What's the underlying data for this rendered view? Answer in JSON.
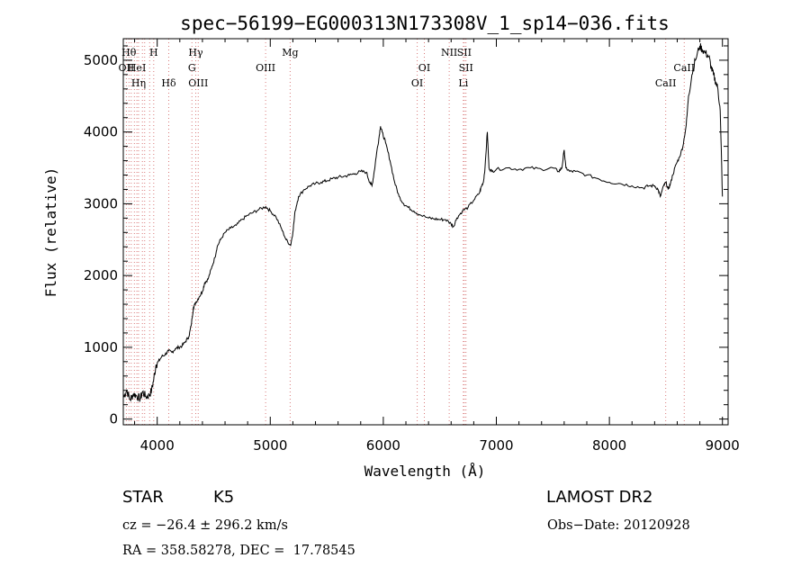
{
  "chart_data": {
    "type": "line",
    "title": "spec−56199−EG000313N173308V_1_sp14−036.fits",
    "xlabel": "Wavelength (Å)",
    "ylabel": "Flux (relative)",
    "xlim": [
      3700,
      9050
    ],
    "ylim": [
      -80,
      5300
    ],
    "xticks": [
      4000,
      5000,
      6000,
      7000,
      8000,
      9000
    ],
    "yticks": [
      0,
      1000,
      2000,
      3000,
      4000,
      5000
    ],
    "grid": false,
    "line_color": "#000000",
    "marker_color": "#d97a7a",
    "series": [
      {
        "values": [
          [
            3700,
            300
          ],
          [
            3730,
            400
          ],
          [
            3760,
            270
          ],
          [
            3790,
            350
          ],
          [
            3820,
            320
          ],
          [
            3850,
            280
          ],
          [
            3870,
            380
          ],
          [
            3900,
            310
          ],
          [
            3930,
            330
          ],
          [
            3950,
            400
          ],
          [
            3970,
            560
          ],
          [
            3990,
            760
          ],
          [
            4010,
            800
          ],
          [
            4040,
            870
          ],
          [
            4070,
            900
          ],
          [
            4100,
            950
          ],
          [
            4130,
            930
          ],
          [
            4160,
            980
          ],
          [
            4190,
            1000
          ],
          [
            4220,
            1020
          ],
          [
            4250,
            1080
          ],
          [
            4280,
            1150
          ],
          [
            4300,
            1300
          ],
          [
            4320,
            1550
          ],
          [
            4340,
            1620
          ],
          [
            4370,
            1700
          ],
          [
            4400,
            1780
          ],
          [
            4420,
            1900
          ],
          [
            4450,
            1950
          ],
          [
            4480,
            2100
          ],
          [
            4510,
            2250
          ],
          [
            4530,
            2400
          ],
          [
            4560,
            2500
          ],
          [
            4600,
            2600
          ],
          [
            4650,
            2660
          ],
          [
            4700,
            2700
          ],
          [
            4750,
            2780
          ],
          [
            4800,
            2840
          ],
          [
            4850,
            2880
          ],
          [
            4900,
            2920
          ],
          [
            4960,
            2960
          ],
          [
            5000,
            2900
          ],
          [
            5050,
            2820
          ],
          [
            5100,
            2650
          ],
          [
            5140,
            2500
          ],
          [
            5180,
            2420
          ],
          [
            5200,
            2600
          ],
          [
            5220,
            2900
          ],
          [
            5250,
            3100
          ],
          [
            5300,
            3200
          ],
          [
            5350,
            3250
          ],
          [
            5400,
            3280
          ],
          [
            5450,
            3300
          ],
          [
            5500,
            3320
          ],
          [
            5550,
            3350
          ],
          [
            5600,
            3370
          ],
          [
            5650,
            3380
          ],
          [
            5700,
            3400
          ],
          [
            5750,
            3420
          ],
          [
            5800,
            3450
          ],
          [
            5850,
            3440
          ],
          [
            5880,
            3300
          ],
          [
            5900,
            3250
          ],
          [
            5920,
            3450
          ],
          [
            5940,
            3700
          ],
          [
            5960,
            3900
          ],
          [
            5975,
            4080
          ],
          [
            5990,
            4000
          ],
          [
            6020,
            3850
          ],
          [
            6060,
            3600
          ],
          [
            6100,
            3300
          ],
          [
            6140,
            3100
          ],
          [
            6180,
            3000
          ],
          [
            6220,
            2950
          ],
          [
            6270,
            2900
          ],
          [
            6320,
            2850
          ],
          [
            6400,
            2800
          ],
          [
            6450,
            2790
          ],
          [
            6500,
            2780
          ],
          [
            6550,
            2780
          ],
          [
            6600,
            2720
          ],
          [
            6620,
            2680
          ],
          [
            6650,
            2800
          ],
          [
            6700,
            2900
          ],
          [
            6750,
            2950
          ],
          [
            6800,
            3050
          ],
          [
            6850,
            3150
          ],
          [
            6870,
            3250
          ],
          [
            6885,
            3300
          ],
          [
            6900,
            3500
          ],
          [
            6920,
            4000
          ],
          [
            6935,
            3500
          ],
          [
            6960,
            3450
          ],
          [
            7000,
            3480
          ],
          [
            7100,
            3500
          ],
          [
            7200,
            3480
          ],
          [
            7300,
            3500
          ],
          [
            7400,
            3480
          ],
          [
            7500,
            3500
          ],
          [
            7550,
            3450
          ],
          [
            7580,
            3500
          ],
          [
            7600,
            3750
          ],
          [
            7615,
            3500
          ],
          [
            7650,
            3450
          ],
          [
            7700,
            3450
          ],
          [
            7800,
            3400
          ],
          [
            7900,
            3350
          ],
          [
            8000,
            3300
          ],
          [
            8100,
            3280
          ],
          [
            8200,
            3250
          ],
          [
            8300,
            3220
          ],
          [
            8350,
            3250
          ],
          [
            8400,
            3250
          ],
          [
            8430,
            3200
          ],
          [
            8450,
            3100
          ],
          [
            8480,
            3250
          ],
          [
            8500,
            3300
          ],
          [
            8520,
            3200
          ],
          [
            8540,
            3280
          ],
          [
            8560,
            3400
          ],
          [
            8590,
            3550
          ],
          [
            8620,
            3650
          ],
          [
            8650,
            3800
          ],
          [
            8680,
            4100
          ],
          [
            8700,
            4500
          ],
          [
            8730,
            4800
          ],
          [
            8760,
            5000
          ],
          [
            8800,
            5200
          ],
          [
            8820,
            5150
          ],
          [
            8850,
            5100
          ],
          [
            8880,
            5050
          ],
          [
            8900,
            4900
          ],
          [
            8920,
            4800
          ],
          [
            8940,
            4700
          ],
          [
            8960,
            4600
          ],
          [
            8980,
            4300
          ],
          [
            9000,
            3100
          ]
        ]
      }
    ],
    "lines": [
      {
        "wave": 3750,
        "label": "Hθ",
        "row": 1
      },
      {
        "wave": 3727,
        "label": "OII",
        "row": 2
      },
      {
        "wave": 3770,
        "label": "",
        "row": 0
      },
      {
        "wave": 3798,
        "label": "",
        "row": 0
      },
      {
        "wave": 3820,
        "label": "HeI",
        "row": 2
      },
      {
        "wave": 3835,
        "label": "Hη",
        "row": 3
      },
      {
        "wave": 3869,
        "label": "",
        "row": 0
      },
      {
        "wave": 3889,
        "label": "",
        "row": 0
      },
      {
        "wave": 3933,
        "label": "",
        "row": 0
      },
      {
        "wave": 3969,
        "label": "H",
        "row": 1
      },
      {
        "wave": 4102,
        "label": "Hδ",
        "row": 3
      },
      {
        "wave": 4307,
        "label": "G",
        "row": 2
      },
      {
        "wave": 4341,
        "label": "Hγ",
        "row": 1
      },
      {
        "wave": 4363,
        "label": "OIII",
        "row": 3
      },
      {
        "wave": 4959,
        "label": "OIII",
        "row": 2
      },
      {
        "wave": 5176,
        "label": "Mg",
        "row": 1
      },
      {
        "wave": 6300,
        "label": "OI",
        "row": 3
      },
      {
        "wave": 6363,
        "label": "OI",
        "row": 2
      },
      {
        "wave": 6583,
        "label": "NII",
        "row": 1
      },
      {
        "wave": 6708,
        "label": "Li",
        "row": 3
      },
      {
        "wave": 6716,
        "label": "SII",
        "row": 1
      },
      {
        "wave": 6731,
        "label": "SII",
        "row": 2
      },
      {
        "wave": 8498,
        "label": "CaII",
        "row": 3
      },
      {
        "wave": 8662,
        "label": "CaII",
        "row": 2
      }
    ]
  },
  "info": {
    "object_class": "STAR",
    "subclass": "K5",
    "survey": "LAMOST DR2",
    "cz": "cz = −26.4 ± 296.2 km/s",
    "obs_date": "Obs−Date: 20120928",
    "coords": "RA = 358.58278, DEC =  17.78545"
  }
}
